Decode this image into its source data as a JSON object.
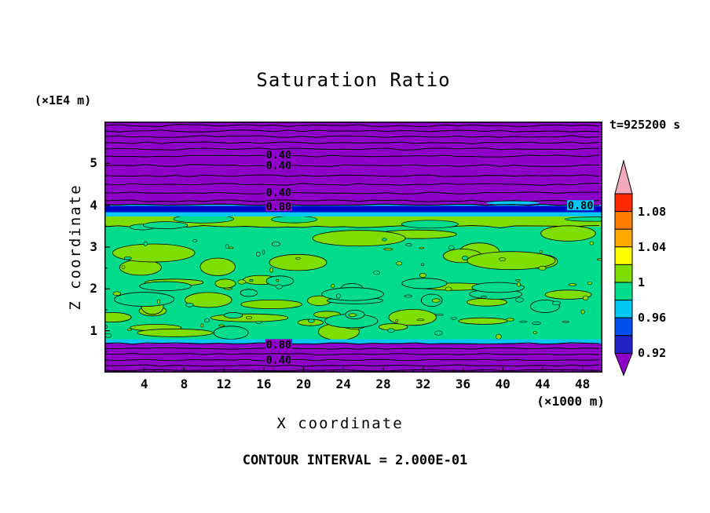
{
  "chart_data": {
    "type": "heatmap",
    "title": "Saturation Ratio",
    "xlabel": "X coordinate",
    "ylabel": "Z coordinate",
    "x_unit": "(×1000 m)",
    "y_unit": "(×1E4 m)",
    "time_annotation": "t=925200 s",
    "contour_interval_note": "CONTOUR INTERVAL = 2.000E-01",
    "contour_interval": 0.2,
    "xlim": [
      0,
      50
    ],
    "ylim": [
      0,
      6
    ],
    "x_ticks": [
      4,
      8,
      12,
      16,
      20,
      24,
      28,
      32,
      36,
      40,
      44,
      48
    ],
    "y_ticks": [
      1,
      2,
      3,
      4,
      5
    ],
    "grid": false,
    "legend_position": "right-colorbar",
    "colorbar": {
      "tick_labels_top_to_bottom": [
        "1.08",
        "1.04",
        "1",
        "0.96",
        "0.92"
      ],
      "segment_colors_top_to_bottom": [
        "#FF2A00",
        "#FF7D00",
        "#FFA800",
        "#FFFF00",
        "#7EDE00",
        "#00DC8C",
        "#00C8F5",
        "#0050F0",
        "#2121C8"
      ],
      "over_arrow_color": "#F2A9BE",
      "under_arrow_color": "#8E00C8"
    },
    "field": {
      "background_low_color": "#8E00C8",
      "mid_low_color": "#00DC8C",
      "mid_high_color": "#7EDE00",
      "stripe_color": "#0000C8",
      "stripe_edge_color": "#00C8F5",
      "stripe_z": 4.0,
      "green_band_z_range": [
        0.8,
        3.95
      ],
      "purple_bands_z_ranges": [
        [
          4.05,
          6.0
        ],
        [
          0.0,
          0.7
        ]
      ]
    },
    "contour_labels": [
      {
        "value": "0.40",
        "x": 17.5,
        "z": 5.2
      },
      {
        "value": "0.40",
        "x": 17.5,
        "z": 4.95
      },
      {
        "value": "0.40",
        "x": 17.5,
        "z": 4.3
      },
      {
        "value": "0.80",
        "x": 17.5,
        "z": 3.97
      },
      {
        "value": "0.80",
        "x": 47.8,
        "z": 3.99
      },
      {
        "value": "0.80",
        "x": 17.5,
        "z": 0.67
      },
      {
        "value": "0.40",
        "x": 17.5,
        "z": 0.3
      }
    ]
  }
}
